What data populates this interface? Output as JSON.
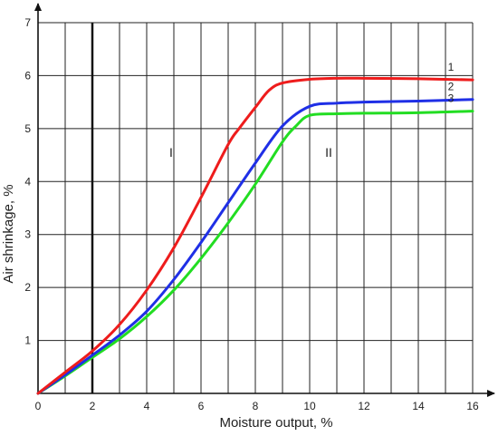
{
  "chart_data": {
    "type": "line",
    "xlabel": "Moisture output, %",
    "ylabel": "Air shrinkage, %",
    "xlim": [
      0,
      16
    ],
    "ylim": [
      0,
      7
    ],
    "xticks": [
      "0",
      "2",
      "4",
      "6",
      "8",
      "10",
      "12",
      "14",
      "16"
    ],
    "yticks": [
      "1",
      "2",
      "3",
      "4",
      "5",
      "6",
      "7"
    ],
    "grid": true,
    "legend": "none",
    "vertical_line_x": 2,
    "annotations": [
      {
        "text": "I",
        "x": 4.9,
        "y": 4.55
      },
      {
        "text": "II",
        "x": 10.7,
        "y": 4.55
      }
    ],
    "series": [
      {
        "label": "1",
        "color": "#ee1c1c",
        "x": [
          0,
          1,
          2,
          3,
          4,
          5,
          6,
          7,
          7.4,
          8,
          8.5,
          9,
          10,
          11,
          12,
          14,
          16
        ],
        "y": [
          0,
          0.4,
          0.8,
          1.3,
          1.95,
          2.75,
          3.7,
          4.7,
          5.0,
          5.4,
          5.72,
          5.86,
          5.93,
          5.95,
          5.95,
          5.94,
          5.92
        ]
      },
      {
        "label": "2",
        "color": "#1f2fe6",
        "x": [
          0,
          1,
          2,
          3,
          4,
          5,
          6,
          7,
          8,
          9,
          10,
          11,
          12,
          14,
          16
        ],
        "y": [
          0,
          0.35,
          0.72,
          1.1,
          1.55,
          2.15,
          2.85,
          3.6,
          4.35,
          5.05,
          5.42,
          5.48,
          5.5,
          5.52,
          5.55
        ]
      },
      {
        "label": "3",
        "color": "#22dd22",
        "x": [
          0,
          1,
          2,
          3,
          4,
          5,
          6,
          7,
          8,
          9,
          9.5,
          10,
          11,
          12,
          14,
          16
        ],
        "y": [
          0,
          0.33,
          0.68,
          1.03,
          1.45,
          1.95,
          2.55,
          3.22,
          3.95,
          4.75,
          5.05,
          5.25,
          5.28,
          5.29,
          5.3,
          5.33
        ]
      }
    ]
  }
}
